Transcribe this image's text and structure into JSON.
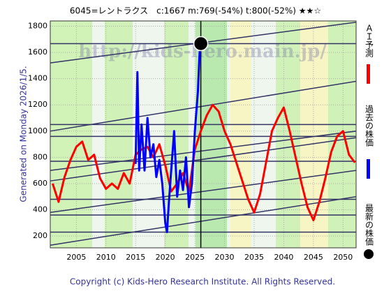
{
  "chart_data": {
    "type": "line",
    "title": "6045=レントラクス　c:1667  m:769(-54%)  t:800(-52%)  ★★☆",
    "left_note": "Generated on Monday 2026/1/5.",
    "footer": "Copyright (c) Kids-Hero Research Institute. All Rights Reserved.",
    "watermark": "http://kids-hero.main.jp/",
    "xlim": [
      2000.6,
      2052.2
    ],
    "ylim": [
      110,
      1840
    ],
    "xticks": [
      2005,
      2010,
      2015,
      2020,
      2025,
      2030,
      2035,
      2040,
      2045,
      2050
    ],
    "yticks": [
      200,
      400,
      600,
      800,
      1000,
      1200,
      1400,
      1600,
      1800
    ],
    "grid": true,
    "levels": [
      1667,
      1050,
      960,
      770,
      480,
      360,
      230
    ],
    "trend_lines": [
      {
        "start": 1520,
        "end": 1830
      },
      {
        "start": 1000,
        "end": 1380
      },
      {
        "start": 700,
        "end": 1000
      },
      {
        "start": 620,
        "end": 950
      },
      {
        "start": 380,
        "end": 700
      },
      {
        "start": 130,
        "end": 500
      }
    ],
    "current_x": 2026,
    "series": [
      {
        "name": "ＡＩ予測",
        "color": "#ff0000",
        "x": [
          2001,
          2002,
          2003,
          2004,
          2005,
          2006,
          2007,
          2008,
          2009,
          2010,
          2011,
          2012,
          2013,
          2014,
          2015,
          2016,
          2017,
          2018,
          2019,
          2020,
          2021,
          2022,
          2023,
          2024,
          2025,
          2026,
          2027,
          2028,
          2029,
          2030,
          2031,
          2032,
          2033,
          2034,
          2035,
          2036,
          2037,
          2038,
          2039,
          2040,
          2041,
          2042,
          2043,
          2044,
          2045,
          2046,
          2047,
          2048,
          2049,
          2050,
          2051,
          2052
        ],
        "values": [
          600,
          460,
          650,
          780,
          880,
          920,
          780,
          820,
          640,
          560,
          600,
          560,
          680,
          600,
          820,
          860,
          880,
          800,
          900,
          740,
          540,
          600,
          680,
          540,
          860,
          1000,
          1120,
          1200,
          1150,
          1000,
          900,
          760,
          620,
          480,
          380,
          520,
          760,
          1000,
          1100,
          1180,
          1000,
          800,
          600,
          420,
          320,
          460,
          640,
          840,
          960,
          1000,
          820,
          760
        ]
      },
      {
        "name": "過去の株価",
        "color": "#0000ff",
        "x": [
          2015,
          2015.3,
          2015.6,
          2016,
          2016.5,
          2017,
          2017.5,
          2018,
          2018.5,
          2019,
          2019.5,
          2020,
          2020.3,
          2020.6,
          2021,
          2021.5,
          2022,
          2022.5,
          2023,
          2023.5,
          2024,
          2024.5,
          2025,
          2025.5,
          2025.8,
          2026
        ],
        "values": [
          750,
          1450,
          700,
          1050,
          700,
          1100,
          800,
          900,
          650,
          780,
          600,
          300,
          230,
          450,
          700,
          1000,
          500,
          700,
          550,
          800,
          420,
          600,
          1000,
          1300,
          1600,
          1667
        ]
      },
      {
        "name": "最新の株価",
        "color": "#000000",
        "x": [
          2026
        ],
        "values": [
          1667
        ]
      }
    ]
  }
}
